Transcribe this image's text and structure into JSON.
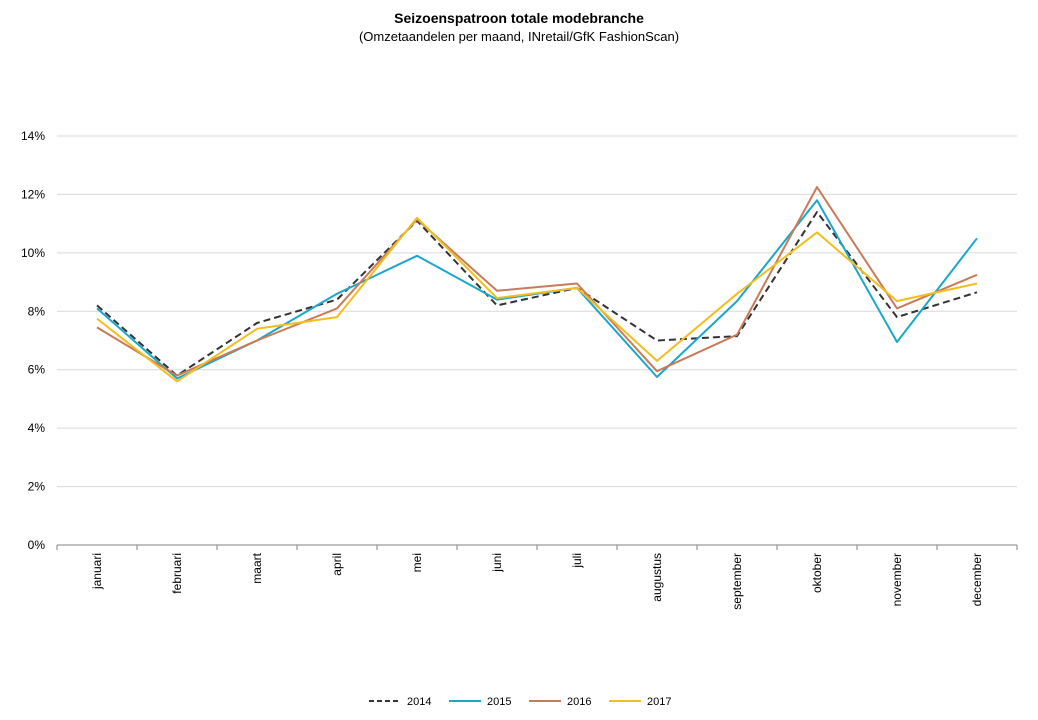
{
  "chart_data": {
    "type": "line",
    "title": "Seizoenspatroon totale modebranche",
    "subtitle": "(Omzetaandelen per maand, INretail/GfK FashionScan)",
    "xlabel": "",
    "ylabel": "",
    "categories": [
      "januari",
      "februari",
      "maart",
      "april",
      "mei",
      "juni",
      "juli",
      "augustus",
      "september",
      "oktober",
      "november",
      "december"
    ],
    "ylim": [
      0,
      14
    ],
    "yticks": [
      0,
      2,
      4,
      6,
      8,
      10,
      12,
      14
    ],
    "ytick_labels": [
      "0%",
      "2%",
      "4%",
      "6%",
      "8%",
      "10%",
      "12%",
      "14%"
    ],
    "grid": true,
    "legend_position": "bottom-center",
    "series": [
      {
        "name": "2014",
        "color": "#333333",
        "dashed": true,
        "values": [
          8.2,
          5.8,
          7.6,
          8.4,
          11.1,
          8.2,
          8.8,
          7.0,
          7.15,
          11.4,
          7.8,
          8.65
        ]
      },
      {
        "name": "2015",
        "color": "#1BA7C9",
        "dashed": false,
        "values": [
          8.1,
          5.7,
          7.0,
          8.6,
          9.9,
          8.4,
          8.8,
          5.75,
          8.35,
          11.8,
          6.95,
          10.5
        ]
      },
      {
        "name": "2016",
        "color": "#C87B5B",
        "dashed": false,
        "values": [
          7.45,
          5.8,
          7.0,
          8.1,
          11.15,
          8.7,
          8.95,
          5.95,
          7.2,
          12.25,
          8.1,
          9.25
        ]
      },
      {
        "name": "2017",
        "color": "#F2BE1D",
        "dashed": false,
        "values": [
          7.75,
          5.6,
          7.4,
          7.8,
          11.2,
          8.45,
          8.8,
          6.3,
          8.6,
          10.7,
          8.35,
          8.95
        ]
      }
    ]
  }
}
